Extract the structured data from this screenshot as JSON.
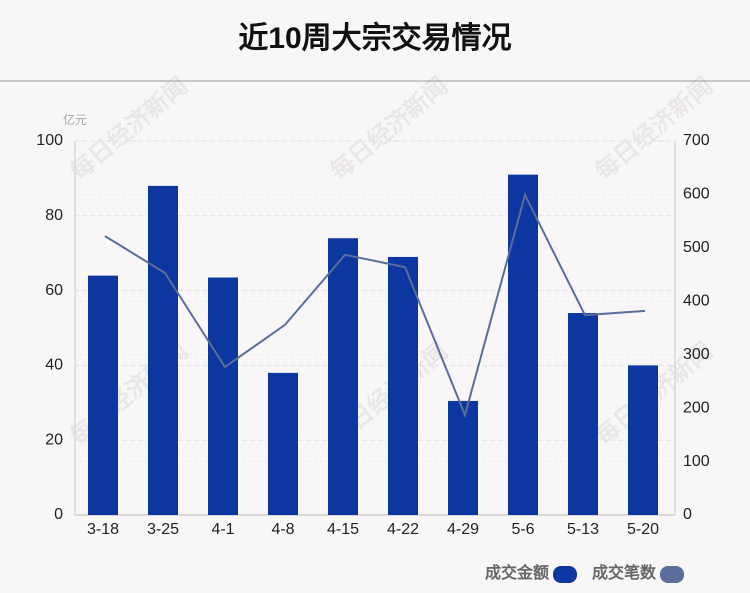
{
  "chart_data": {
    "type": "bar-line",
    "title": "近10周大宗交易情况",
    "y_unit": "亿元",
    "watermark": "每日经济新闻",
    "categories": [
      "3-18",
      "3-25",
      "4-1",
      "4-8",
      "4-15",
      "4-22",
      "4-29",
      "5-6",
      "5-13",
      "5-20"
    ],
    "series": [
      {
        "name": "成交金额",
        "type": "bar",
        "color": "#0c36a0",
        "values": [
          64,
          88,
          63.5,
          38,
          74,
          69,
          30.5,
          91,
          54,
          40
        ]
      },
      {
        "name": "成交笔数",
        "type": "line",
        "axis": "y2",
        "color": "#5a6e99",
        "values": [
          522,
          453,
          277,
          356,
          487,
          464,
          187,
          599,
          374,
          382
        ]
      }
    ],
    "ylim": [
      0,
      100
    ],
    "yticks": [
      0,
      20,
      40,
      60,
      80,
      100
    ],
    "y2lim": [
      0,
      700
    ],
    "y2ticks": [
      0,
      100,
      200,
      300,
      400,
      500,
      600,
      700
    ],
    "grid": true
  }
}
